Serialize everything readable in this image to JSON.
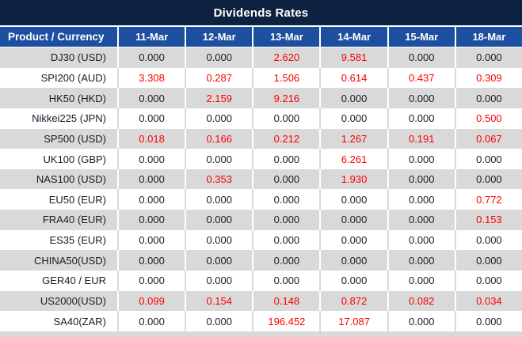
{
  "title": "Dividends Rates",
  "colors": {
    "title_bg": "#0d2240",
    "header_bg": "#1d4fa1",
    "row_gray": "#d9d9d9",
    "row_white": "#ffffff",
    "value_text": "#1a1a2b",
    "highlight_text": "#ff0000"
  },
  "table": {
    "product_header": "Product / Currency",
    "date_columns": [
      "11-Mar",
      "12-Mar",
      "13-Mar",
      "14-Mar",
      "15-Mar",
      "18-Mar"
    ],
    "rows": [
      {
        "product": "DJ30 (USD)",
        "values": [
          "0.000",
          "0.000",
          "2.620",
          "9.581",
          "0.000",
          "0.000"
        ],
        "red": [
          false,
          false,
          true,
          true,
          false,
          false
        ]
      },
      {
        "product": "SPI200 (AUD)",
        "values": [
          "3.308",
          "0.287",
          "1.506",
          "0.614",
          "0.437",
          "0.309"
        ],
        "red": [
          true,
          true,
          true,
          true,
          true,
          true
        ]
      },
      {
        "product": "HK50 (HKD)",
        "values": [
          "0.000",
          "2.159",
          "9.216",
          "0.000",
          "0.000",
          "0.000"
        ],
        "red": [
          false,
          true,
          true,
          false,
          false,
          false
        ]
      },
      {
        "product": "Nikkei225 (JPN)",
        "values": [
          "0.000",
          "0.000",
          "0.000",
          "0.000",
          "0.000",
          "0.500"
        ],
        "red": [
          false,
          false,
          false,
          false,
          false,
          true
        ]
      },
      {
        "product": "SP500 (USD)",
        "values": [
          "0.018",
          "0.166",
          "0.212",
          "1.267",
          "0.191",
          "0.067"
        ],
        "red": [
          true,
          true,
          true,
          true,
          true,
          true
        ]
      },
      {
        "product": "UK100 (GBP)",
        "values": [
          "0.000",
          "0.000",
          "0.000",
          "6.261",
          "0.000",
          "0.000"
        ],
        "red": [
          false,
          false,
          false,
          true,
          false,
          false
        ]
      },
      {
        "product": "NAS100 (USD)",
        "values": [
          "0.000",
          "0.353",
          "0.000",
          "1.930",
          "0.000",
          "0.000"
        ],
        "red": [
          false,
          true,
          false,
          true,
          false,
          false
        ]
      },
      {
        "product": "EU50 (EUR)",
        "values": [
          "0.000",
          "0.000",
          "0.000",
          "0.000",
          "0.000",
          "0.772"
        ],
        "red": [
          false,
          false,
          false,
          false,
          false,
          true
        ]
      },
      {
        "product": "FRA40 (EUR)",
        "values": [
          "0.000",
          "0.000",
          "0.000",
          "0.000",
          "0.000",
          "0.153"
        ],
        "red": [
          false,
          false,
          false,
          false,
          false,
          true
        ]
      },
      {
        "product": "ES35 (EUR)",
        "values": [
          "0.000",
          "0.000",
          "0.000",
          "0.000",
          "0.000",
          "0.000"
        ],
        "red": [
          false,
          false,
          false,
          false,
          false,
          false
        ]
      },
      {
        "product": "CHINA50(USD)",
        "values": [
          "0.000",
          "0.000",
          "0.000",
          "0.000",
          "0.000",
          "0.000"
        ],
        "red": [
          false,
          false,
          false,
          false,
          false,
          false
        ]
      },
      {
        "product": "GER40 / EUR",
        "values": [
          "0.000",
          "0.000",
          "0.000",
          "0.000",
          "0.000",
          "0.000"
        ],
        "red": [
          false,
          false,
          false,
          false,
          false,
          false
        ]
      },
      {
        "product": "US2000(USD)",
        "values": [
          "0.099",
          "0.154",
          "0.148",
          "0.872",
          "0.082",
          "0.034"
        ],
        "red": [
          true,
          true,
          true,
          true,
          true,
          true
        ]
      },
      {
        "product": "SA40(ZAR)",
        "values": [
          "0.000",
          "0.000",
          "196.452",
          "17.087",
          "0.000",
          "0.000"
        ],
        "red": [
          false,
          false,
          true,
          true,
          false,
          false
        ]
      }
    ]
  }
}
